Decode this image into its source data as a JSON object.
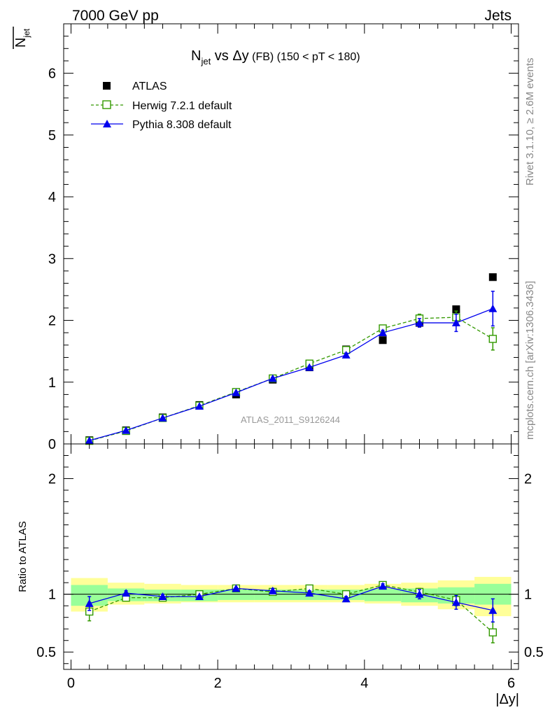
{
  "header": {
    "energy_label": "7000 GeV pp",
    "category_label": "Jets",
    "title_main": "N",
    "title_sub": "jet",
    "title_vs": " vs ",
    "title_delta": "Δy",
    "title_fb": " (FB)",
    "title_range": " (150 < pT < 180)",
    "ylabel_main": "N",
    "ylabel_sub": "jet",
    "xlabel": "|Δy|",
    "ratio_ylabel": "Ratio to ATLAS",
    "watermark": "ATLAS_2011_S9126244",
    "side_rivet": "Rivet 3.1.10, ≥ 2.6M events",
    "side_mcplots": "mcplots.cern.ch [arXiv:1306.3436]"
  },
  "legend": {
    "atlas": "ATLAS",
    "herwig": "Herwig 7.2.1 default",
    "pythia": "Pythia 8.308 default"
  },
  "colors": {
    "atlas": "#000000",
    "herwig": "#339900",
    "pythia": "#0000ee",
    "band_inner": "#99ff99",
    "band_outer": "#ffff99"
  },
  "chart_data": [
    {
      "type": "line",
      "title": "N_jet vs Δy (FB) (150 < pT < 180)",
      "xlabel": "|Δy|",
      "ylabel": "N_jet",
      "xlim": [
        -0.1,
        6.1
      ],
      "ylim": [
        0,
        6.8
      ],
      "yticks": [
        0,
        1,
        2,
        3,
        4,
        5,
        6
      ],
      "xticks": [
        0,
        2,
        4,
        6
      ],
      "x": [
        0.25,
        0.75,
        1.25,
        1.75,
        2.25,
        2.75,
        3.25,
        3.75,
        4.25,
        4.75,
        5.25,
        5.75
      ],
      "series": [
        {
          "name": "ATLAS",
          "style": "marker-square",
          "values": [
            0.06,
            0.22,
            0.43,
            0.63,
            0.8,
            1.04,
            1.24,
            1.53,
            1.68,
            1.96,
            2.18,
            2.7
          ]
        },
        {
          "name": "Herwig 7.2.1 default",
          "style": "dashed-open-square",
          "values": [
            0.05,
            0.21,
            0.42,
            0.62,
            0.84,
            1.06,
            1.3,
            1.52,
            1.87,
            2.03,
            2.05,
            1.7
          ],
          "errors": [
            0.005,
            0.01,
            0.01,
            0.01,
            0.015,
            0.02,
            0.02,
            0.03,
            0.04,
            0.07,
            0.1,
            0.18
          ]
        },
        {
          "name": "Pythia 8.308 default",
          "style": "solid-triangle",
          "values": [
            0.055,
            0.22,
            0.42,
            0.61,
            0.83,
            1.06,
            1.24,
            1.44,
            1.8,
            1.96,
            1.96,
            2.19
          ],
          "errors": [
            0.005,
            0.01,
            0.01,
            0.01,
            0.015,
            0.02,
            0.02,
            0.03,
            0.04,
            0.07,
            0.14,
            0.28
          ]
        }
      ]
    },
    {
      "type": "line",
      "ylabel": "Ratio to ATLAS",
      "xlabel": "|Δy|",
      "xlim": [
        -0.1,
        6.1
      ],
      "ylim": [
        0.35,
        2.3
      ],
      "yticks": [
        0.5,
        1,
        2
      ],
      "xticks": [
        0,
        2,
        4,
        6
      ],
      "bin_edges": [
        0,
        0.5,
        1.0,
        1.5,
        2.0,
        2.5,
        3.0,
        3.5,
        4.0,
        4.5,
        5.0,
        5.5,
        6.0
      ],
      "band_inner": [
        [
          0.9,
          1.08
        ],
        [
          0.94,
          1.05
        ],
        [
          0.94,
          1.04
        ],
        [
          0.94,
          1.04
        ],
        [
          0.95,
          1.04
        ],
        [
          0.95,
          1.04
        ],
        [
          0.95,
          1.04
        ],
        [
          0.95,
          1.04
        ],
        [
          0.94,
          1.05
        ],
        [
          0.93,
          1.05
        ],
        [
          0.92,
          1.06
        ],
        [
          0.91,
          1.09
        ]
      ],
      "band_outer": [
        [
          0.85,
          1.14
        ],
        [
          0.91,
          1.1
        ],
        [
          0.92,
          1.09
        ],
        [
          0.93,
          1.08
        ],
        [
          0.93,
          1.08
        ],
        [
          0.93,
          1.08
        ],
        [
          0.93,
          1.08
        ],
        [
          0.93,
          1.08
        ],
        [
          0.92,
          1.09
        ],
        [
          0.9,
          1.1
        ],
        [
          0.87,
          1.12
        ],
        [
          0.81,
          1.15
        ]
      ],
      "series": [
        {
          "name": "Herwig 7.2.1 default",
          "style": "dashed-open-square",
          "values": [
            0.85,
            0.97,
            0.97,
            1.0,
            1.05,
            1.02,
            1.05,
            1.0,
            1.08,
            1.02,
            0.95,
            0.67
          ],
          "errors": [
            0.08,
            0.02,
            0.02,
            0.01,
            0.01,
            0.02,
            0.02,
            0.02,
            0.02,
            0.03,
            0.05,
            0.09
          ]
        },
        {
          "name": "Pythia 8.308 default",
          "style": "solid-triangle",
          "values": [
            0.92,
            1.01,
            0.98,
            0.98,
            1.05,
            1.03,
            1.01,
            0.96,
            1.07,
            1.0,
            0.93,
            0.86
          ],
          "errors": [
            0.06,
            0.02,
            0.02,
            0.01,
            0.01,
            0.02,
            0.02,
            0.02,
            0.02,
            0.04,
            0.06,
            0.1
          ]
        }
      ]
    }
  ]
}
